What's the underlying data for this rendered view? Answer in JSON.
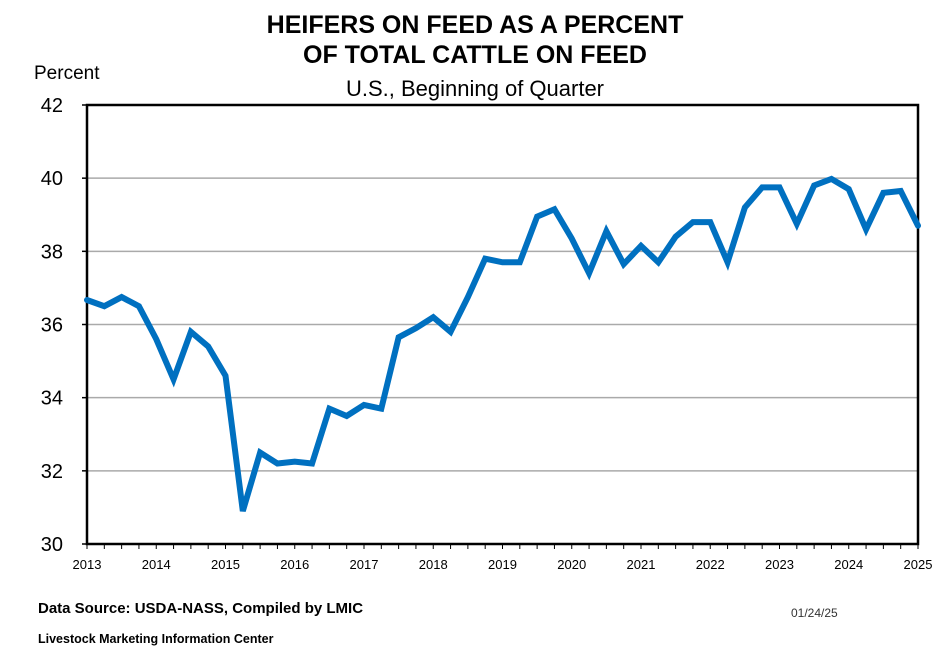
{
  "chart_data": {
    "type": "line",
    "title": "HEIFERS ON FEED AS A PERCENT OF TOTAL CATTLE ON FEED",
    "title_lines": [
      "HEIFERS ON FEED AS A PERCENT",
      "OF TOTAL CATTLE ON FEED"
    ],
    "subtitle": "U.S., Beginning of Quarter",
    "ylabel": "Percent",
    "xlabel": "",
    "ylim": [
      30,
      42
    ],
    "yticks": [
      30,
      32,
      34,
      36,
      38,
      40,
      42
    ],
    "xlim": [
      2013,
      2025
    ],
    "xticks": [
      "2013",
      "2014",
      "2015",
      "2016",
      "2017",
      "2018",
      "2019",
      "2020",
      "2021",
      "2022",
      "2023",
      "2024",
      "2025"
    ],
    "grid": true,
    "line_color": "#0070C0",
    "x_start": "2013 Q1",
    "x_step": "quarter",
    "values": [
      36.67,
      36.5,
      36.75,
      36.5,
      35.6,
      34.5,
      35.8,
      35.4,
      34.6,
      30.9,
      32.5,
      32.2,
      32.25,
      32.2,
      33.7,
      33.5,
      33.8,
      33.7,
      35.65,
      35.9,
      36.2,
      35.8,
      36.75,
      37.8,
      37.7,
      37.7,
      38.95,
      39.15,
      38.35,
      37.4,
      38.55,
      37.65,
      38.15,
      37.7,
      38.4,
      38.8,
      38.8,
      37.7,
      39.2,
      39.75,
      39.75,
      38.75,
      39.8,
      39.98,
      39.7,
      38.6,
      39.6,
      39.65,
      38.7
    ]
  },
  "footer": {
    "source": "Data Source:  USDA-NASS, Compiled  by LMIC",
    "date": "01/24/25",
    "organization": "Livestock Marketing Information Center"
  }
}
